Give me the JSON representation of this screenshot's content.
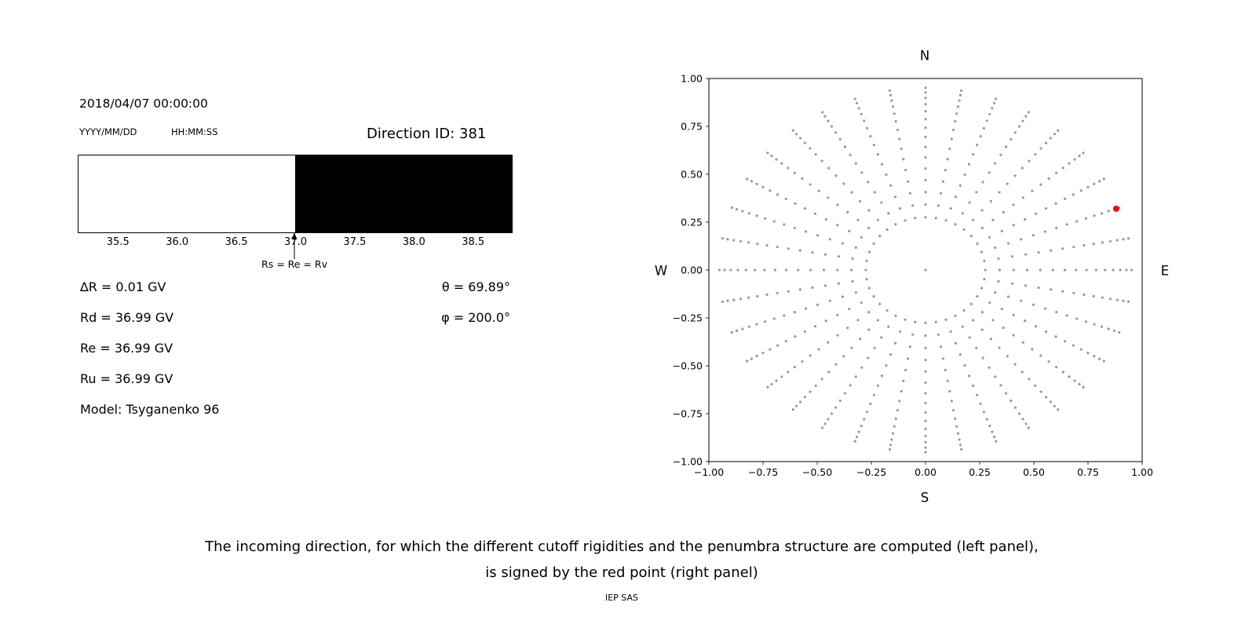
{
  "header": {
    "datetime": "2018/04/07 00:00:00",
    "date_format": "YYYY/MM/DD",
    "time_format": "HH:MM:SS",
    "direction_id": "Direction ID: 381"
  },
  "left_values": {
    "delta_r": "∆R = 0.01 GV",
    "rd": "Rd = 36.99 GV",
    "re": "Re = 36.99 GV",
    "ru": "Ru = 36.99 GV",
    "model": "Model: Tsyganenko 96",
    "theta": "θ = 69.89°",
    "phi": "φ = 200.0°"
  },
  "caption": {
    "line1": "The incoming direction, for which the different cutoff rigidities and the penumbra structure are computed (left panel),",
    "line2": "is signed by the red point (right panel)",
    "credit": "IEP SAS"
  },
  "chart_data": [
    {
      "type": "bar",
      "title": "",
      "xlabel": "",
      "ylabel": "",
      "xlim": [
        35.16,
        38.82
      ],
      "x_ticks": [
        35.5,
        36.0,
        36.5,
        37.0,
        37.5,
        38.0,
        38.5
      ],
      "x_tick_labels": [
        "35.5",
        "36.0",
        "36.5",
        "37.0",
        "37.5",
        "38.0",
        "38.5"
      ],
      "regions": [
        {
          "start": 35.16,
          "end": 36.99,
          "color": "#ffffff"
        },
        {
          "start": 36.99,
          "end": 38.82,
          "color": "#000000"
        }
      ],
      "annotation": {
        "x": 36.99,
        "label": "Rs = Re = Rv"
      }
    },
    {
      "type": "scatter",
      "cardinals": {
        "top": "N",
        "bottom": "S",
        "left": "W",
        "right": "E"
      },
      "xlim": [
        -1,
        1
      ],
      "ylim": [
        -1,
        1
      ],
      "x_ticks": [
        -1,
        -0.75,
        -0.5,
        -0.25,
        0,
        0.25,
        0.5,
        0.75,
        1
      ],
      "y_ticks": [
        1,
        0.75,
        0.5,
        0.25,
        0,
        -0.25,
        -0.5,
        -0.75,
        -1
      ],
      "x_tick_labels": [
        "−1.00",
        "−0.75",
        "−0.50",
        "−0.25",
        "0.00",
        "0.25",
        "0.50",
        "0.75",
        "1.00"
      ],
      "y_tick_labels": [
        "1.00",
        "0.75",
        "0.50",
        "0.25",
        "0.00",
        "−0.25",
        "−0.50",
        "−0.75",
        "−1.00"
      ],
      "spokes": {
        "azimuth_count": 36,
        "azimuth_step_deg": 10,
        "zenith_min_deg": 16,
        "zenith_max_deg": 72,
        "zenith_step_deg": 4,
        "radius_rule": "sin(zenith)"
      },
      "center_point": {
        "x": 0,
        "y": 0
      },
      "point_color": "#999999",
      "red_point": {
        "x": 0.88,
        "y": 0.32,
        "color": "#e8110d"
      }
    }
  ]
}
